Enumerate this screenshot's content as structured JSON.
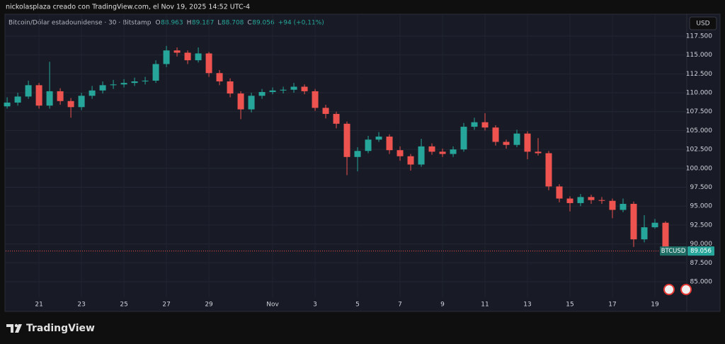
{
  "chart_data": {
    "type": "candlestick",
    "caption": "nickolasplaza creado con TradingView.com, el Nov 19, 2025 14:52 UTC-4",
    "title": "Bitcoin/Dólar estadounidense · 30 · Bitstamp",
    "ohlc_legend": [
      {
        "label": "O",
        "value": "88.963"
      },
      {
        "label": "H",
        "value": "89.187"
      },
      {
        "label": "L",
        "value": "88.708"
      },
      {
        "label": "C",
        "value": "89.056"
      }
    ],
    "change": "+94 (+0,11%)",
    "currency": "USD",
    "symbol": "BTCUSD",
    "last_price": {
      "value": 89056,
      "label": "89.056"
    },
    "up_color": "#26a69a",
    "down_color": "#ef5350",
    "x": [
      19.5,
      20,
      20.5,
      21,
      21.5,
      22,
      22.5,
      23,
      23.5,
      24,
      24.5,
      25,
      25.5,
      26,
      26.5,
      27,
      27.5,
      28,
      28.5,
      29,
      29.5,
      30,
      30.5,
      31,
      31.5,
      32,
      32.5,
      33,
      33.5,
      34,
      34.5,
      35,
      35.5,
      36,
      36.5,
      37,
      37.5,
      38,
      38.5,
      39,
      39.5,
      40,
      40.5,
      41,
      41.5,
      42,
      42.5,
      43,
      43.5,
      44,
      44.5,
      45,
      45.5,
      46,
      46.5,
      47,
      47.5,
      48,
      48.5,
      49,
      49.5,
      50,
      50.5
    ],
    "open": [
      108200,
      108700,
      109500,
      111000,
      108300,
      110200,
      108900,
      108100,
      109600,
      110300,
      111000,
      111100,
      111300,
      111500,
      111600,
      113800,
      115600,
      115300,
      114300,
      115200,
      112600,
      111500,
      109900,
      107800,
      109600,
      110100,
      110300,
      110400,
      110800,
      110200,
      108000,
      107200,
      105900,
      101500,
      102300,
      103800,
      104200,
      102400,
      101600,
      100500,
      102900,
      102200,
      101900,
      102500,
      105500,
      106100,
      105400,
      103500,
      103100,
      104600,
      102200,
      102000,
      97600,
      96000,
      95400,
      96200,
      95800,
      95700,
      94500,
      95300,
      90600,
      92200,
      92800
    ],
    "high": [
      109400,
      110000,
      111600,
      111300,
      114100,
      110600,
      109300,
      110000,
      110900,
      111500,
      111700,
      111800,
      112000,
      112100,
      114300,
      116200,
      116000,
      115600,
      116000,
      115400,
      113000,
      111900,
      110200,
      110000,
      110500,
      110700,
      110800,
      111300,
      111100,
      110500,
      108400,
      107500,
      106200,
      102800,
      104300,
      104800,
      104500,
      102900,
      101900,
      103900,
      103300,
      102600,
      102900,
      106000,
      106700,
      107300,
      105700,
      103800,
      105100,
      104900,
      104000,
      102300,
      97900,
      96300,
      96600,
      96500,
      96200,
      96000,
      96000,
      95600,
      93800,
      93300,
      93000
    ],
    "low": [
      107900,
      108300,
      109200,
      107900,
      107900,
      108400,
      106700,
      107700,
      109200,
      109900,
      110500,
      110700,
      110900,
      111100,
      111300,
      113400,
      114800,
      113800,
      114000,
      112100,
      111000,
      109400,
      106500,
      107400,
      109200,
      109800,
      109900,
      110000,
      109800,
      107600,
      106600,
      105300,
      99100,
      99600,
      102000,
      103500,
      101900,
      101000,
      99700,
      100200,
      101800,
      101500,
      101500,
      102200,
      105100,
      105000,
      103000,
      102600,
      102800,
      101200,
      101700,
      97100,
      95500,
      94300,
      95000,
      95300,
      95300,
      93400,
      94200,
      89600,
      90200,
      92000,
      88708
    ],
    "close": [
      108700,
      109500,
      111000,
      108300,
      110200,
      108900,
      108100,
      109600,
      110300,
      111000,
      111100,
      111300,
      111500,
      111600,
      113800,
      115600,
      115300,
      114300,
      115200,
      112600,
      111500,
      109900,
      107800,
      109600,
      110100,
      110300,
      110400,
      110800,
      110200,
      108000,
      107200,
      105900,
      101500,
      102300,
      103800,
      104200,
      102400,
      101600,
      100500,
      102900,
      102200,
      101900,
      102500,
      105500,
      106100,
      105400,
      103500,
      103100,
      104600,
      102200,
      102000,
      97600,
      96000,
      95400,
      96200,
      95800,
      95700,
      94500,
      95300,
      90600,
      92200,
      92800,
      89056
    ],
    "xlim": [
      19.43,
      51.5
    ],
    "xticks": [
      21,
      23,
      25,
      27,
      29,
      {
        "value": 32,
        "label": "Nov"
      },
      {
        "value": 34,
        "label": "3"
      },
      {
        "value": 36,
        "label": "5"
      },
      {
        "value": 38,
        "label": "7"
      },
      {
        "value": 40,
        "label": "9"
      },
      {
        "value": 42,
        "label": "11"
      },
      {
        "value": 44,
        "label": "13"
      },
      {
        "value": 46,
        "label": "15"
      },
      {
        "value": 48,
        "label": "17"
      },
      {
        "value": 50,
        "label": "19"
      }
    ],
    "ylim": [
      81250,
      120400
    ],
    "yticks": [
      {
        "value": 117500,
        "label": "117.500"
      },
      {
        "value": 115000,
        "label": "115.000"
      },
      {
        "value": 112500,
        "label": "112.500"
      },
      {
        "value": 110000,
        "label": "110.000"
      },
      {
        "value": 107500,
        "label": "107.500"
      },
      {
        "value": 105000,
        "label": "105.000"
      },
      {
        "value": 102500,
        "label": "102.500"
      },
      {
        "value": 100000,
        "label": "100.000"
      },
      {
        "value": 97500,
        "label": "97.500"
      },
      {
        "value": 95000,
        "label": "95.000"
      },
      {
        "value": 92500,
        "label": "92.500"
      },
      {
        "value": 90000,
        "label": "90.000"
      },
      {
        "value": 87500,
        "label": "87.500"
      },
      {
        "value": 85000,
        "label": "85.000"
      }
    ],
    "grid": true
  },
  "brand": "TradingView"
}
